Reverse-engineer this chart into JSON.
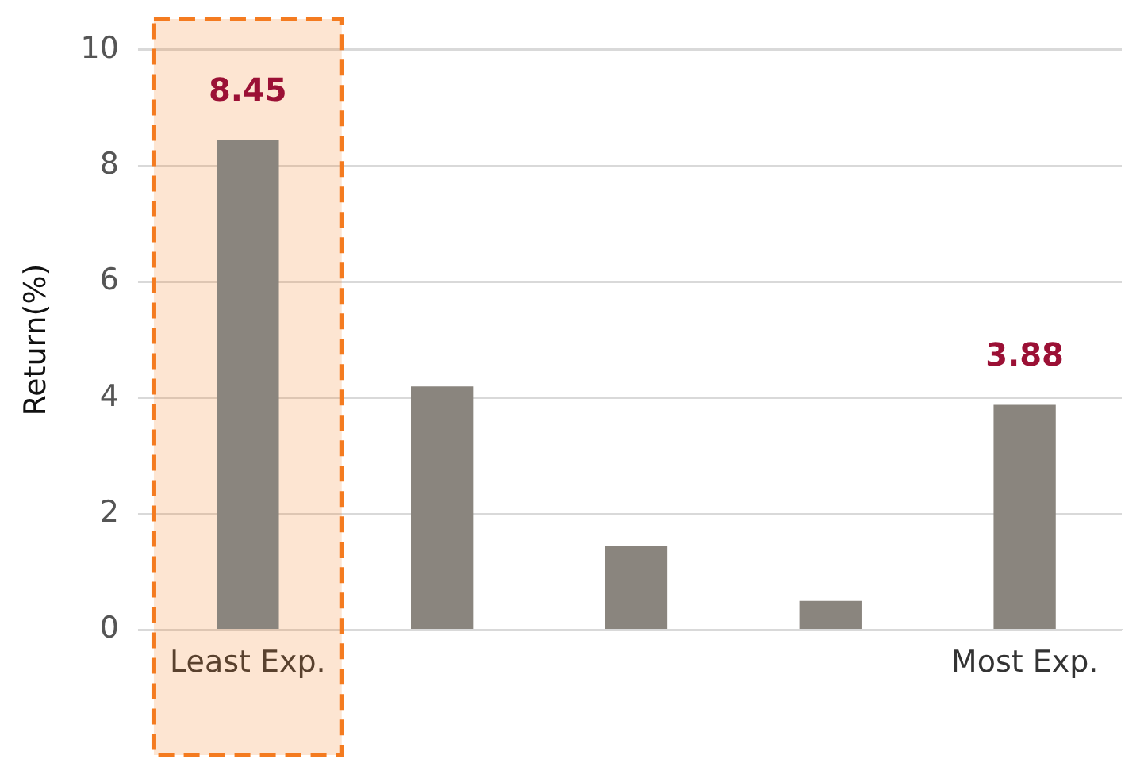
{
  "chart_data": {
    "type": "bar",
    "ylabel": "Return(%)",
    "categories": [
      "Least Exp.",
      null,
      null,
      null,
      "Most Exp."
    ],
    "values": [
      8.45,
      4.2,
      1.45,
      0.5,
      3.88
    ],
    "color": "#8a857e",
    "value_labels": [
      "8.45",
      null,
      null,
      null,
      "3.88"
    ],
    "ylim": [
      0,
      10
    ],
    "yticks": [
      0,
      2,
      4,
      6,
      8,
      10
    ],
    "grid": "y",
    "legend": false,
    "bands": [
      {
        "axis": "x",
        "from": "Least Exp.",
        "to": "Least Exp.",
        "color": "#f47b20"
      }
    ]
  }
}
